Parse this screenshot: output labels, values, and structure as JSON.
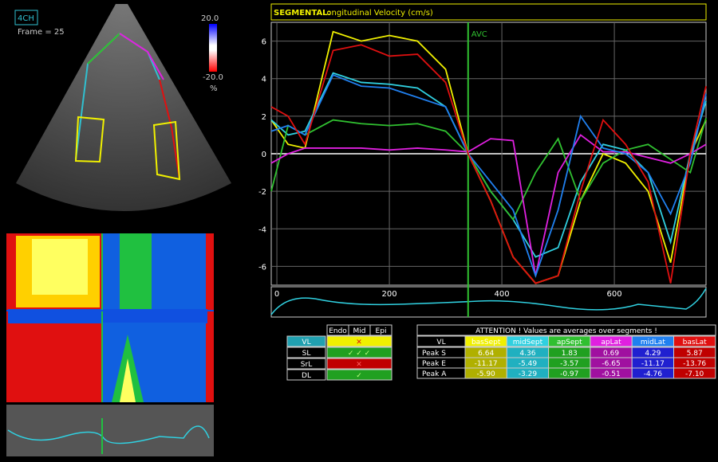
{
  "view_label": "4CH",
  "frame": "Frame = 25",
  "colorbar": {
    "max": "20.0",
    "min": "-20.0",
    "unit": "%"
  },
  "chart_data": {
    "type": "line",
    "title": "SEGMENTAL:",
    "subtitle": "Longitudinal Velocity (cm/s)",
    "annotation": {
      "label": "AVC",
      "x": 340
    },
    "x": [
      -10,
      20,
      50,
      100,
      150,
      200,
      250,
      300,
      340,
      380,
      420,
      460,
      500,
      540,
      580,
      620,
      660,
      700,
      735,
      763
    ],
    "xlim": [
      -10,
      763
    ],
    "xticks": [
      0,
      200,
      400,
      600
    ],
    "ylim": [
      -7,
      7
    ],
    "yticks": [
      -6,
      -4,
      -2,
      0,
      2,
      4,
      6
    ],
    "grid": true,
    "series": [
      {
        "name": "basSept",
        "color": "#f0f000",
        "values": [
          1.8,
          0.5,
          0.3,
          6.5,
          6.0,
          6.3,
          6.0,
          4.5,
          0,
          -2.5,
          -5.5,
          -6.9,
          -6.5,
          -2.5,
          0,
          -0.5,
          -2,
          -5.8,
          0,
          1.8
        ]
      },
      {
        "name": "midSept",
        "color": "#30d0e0",
        "values": [
          1.8,
          1.0,
          1.2,
          4.3,
          3.8,
          3.7,
          3.5,
          2.5,
          0,
          -2,
          -3.5,
          -5.5,
          -5.0,
          -1.5,
          0.5,
          0.2,
          -1.0,
          -4.7,
          0,
          2.8
        ]
      },
      {
        "name": "apSept",
        "color": "#30c030",
        "values": [
          -2,
          1.5,
          1.0,
          1.8,
          1.6,
          1.5,
          1.6,
          1.2,
          0,
          -2,
          -3.5,
          -1,
          0.8,
          -2.5,
          -0.5,
          0.2,
          0.5,
          -0.3,
          -1.0,
          1.9
        ]
      },
      {
        "name": "apLat",
        "color": "#e020e0",
        "values": [
          -0.5,
          0,
          0.3,
          0.3,
          0.3,
          0.2,
          0.3,
          0.2,
          0.1,
          0.8,
          0.7,
          -6.5,
          -1,
          1.0,
          0.1,
          0.1,
          -0.2,
          -0.5,
          0,
          0.5
        ]
      },
      {
        "name": "midLat",
        "color": "#2080f0",
        "values": [
          1.2,
          1.5,
          1.0,
          4.2,
          3.6,
          3.5,
          3.0,
          2.5,
          0,
          -1.5,
          -3,
          -6.5,
          -3,
          2.0,
          0.3,
          0,
          -1.0,
          -3.2,
          -0.5,
          3.2
        ]
      },
      {
        "name": "basLat",
        "color": "#e01010",
        "values": [
          2.5,
          2.0,
          0.5,
          5.5,
          5.8,
          5.2,
          5.3,
          3.8,
          0,
          -2.5,
          -5.5,
          -6.9,
          -6.5,
          -2,
          1.8,
          0.5,
          -1.5,
          -6.9,
          0,
          3.6
        ]
      }
    ]
  },
  "quality_table": {
    "columns": [
      "Endo",
      "Mid",
      "Epi"
    ],
    "rows": [
      "VL",
      "SL",
      "SrL",
      "DL"
    ]
  },
  "peak_table": {
    "title": "ATTENTION !  Values are averages over segments !",
    "corner": "VL",
    "rows": [
      {
        "label": "Peak S",
        "values": [
          "6.64",
          "4.36",
          "1.83",
          "0.69",
          "4.29",
          "5.87"
        ]
      },
      {
        "label": "Peak E",
        "values": [
          "-11.17",
          "-5.49",
          "-3.57",
          "-6.65",
          "-11.17",
          "-13.76"
        ]
      },
      {
        "label": "Peak A",
        "values": [
          "-5.90",
          "-3.29",
          "-0.97",
          "-0.51",
          "-4.76",
          "-7.10"
        ]
      }
    ]
  }
}
